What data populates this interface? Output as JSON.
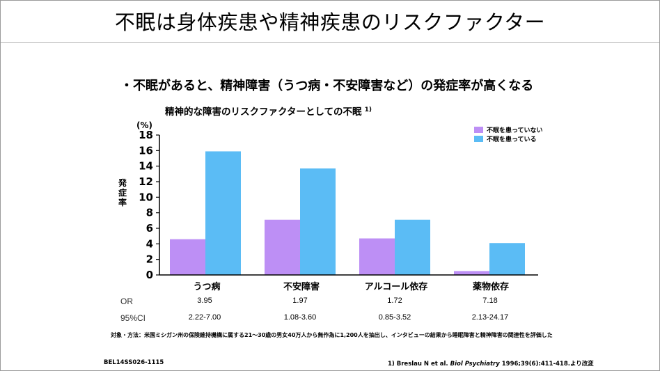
{
  "slide": {
    "title": "不眠は身体疾患や精神疾患のリスクファクター",
    "bullet": "・不眠があると、精神障害（うつ病・不安障害など）の発症率が高くなる",
    "chart_heading": "精神的な障害のリスクファクターとしての不眠",
    "chart_heading_ref": "1)",
    "y_axis_label_chars": [
      "発",
      "症",
      "率"
    ],
    "unit_label": "(%)"
  },
  "chart_data": {
    "type": "bar",
    "title": "精神的な障害のリスクファクターとしての不眠",
    "xlabel": "",
    "ylabel": "発症率",
    "ylim": [
      0,
      18
    ],
    "yticks": [
      0,
      2,
      4,
      6,
      8,
      10,
      12,
      14,
      16,
      18
    ],
    "categories": [
      "うつ病",
      "不安障害",
      "アルコール依存",
      "薬物依存"
    ],
    "series": [
      {
        "name": "不眠を患っていない",
        "color": "#bd8ff5",
        "values": [
          4.6,
          7.1,
          4.7,
          0.5
        ]
      },
      {
        "name": "不眠を患っている",
        "color": "#5bbcf5",
        "values": [
          15.9,
          13.7,
          7.1,
          4.1
        ]
      }
    ],
    "legend_position": "top-right"
  },
  "stats": {
    "or_label": "OR",
    "ci_label": "95%CI",
    "or_values": [
      "3.95",
      "1.97",
      "1.72",
      "7.18"
    ],
    "ci_values": [
      "2.22-7.00",
      "1.08-3.60",
      "0.85-3.52",
      "2.13-24.17"
    ]
  },
  "footer": {
    "note": "対象・方法：米国ミシガン州の保険維持機構に属する21～30歳の男女40万人から無作為に1,200人を抽出し、インタビューの結果から睡眠障害と精神障害の関連性を評価した",
    "code": "BEL14SS026-1115",
    "ref_prefix": "1) Breslau N et al. ",
    "ref_journal": "Biol Psychiatry",
    "ref_suffix": " 1996;39(6):411-418.より改変"
  }
}
